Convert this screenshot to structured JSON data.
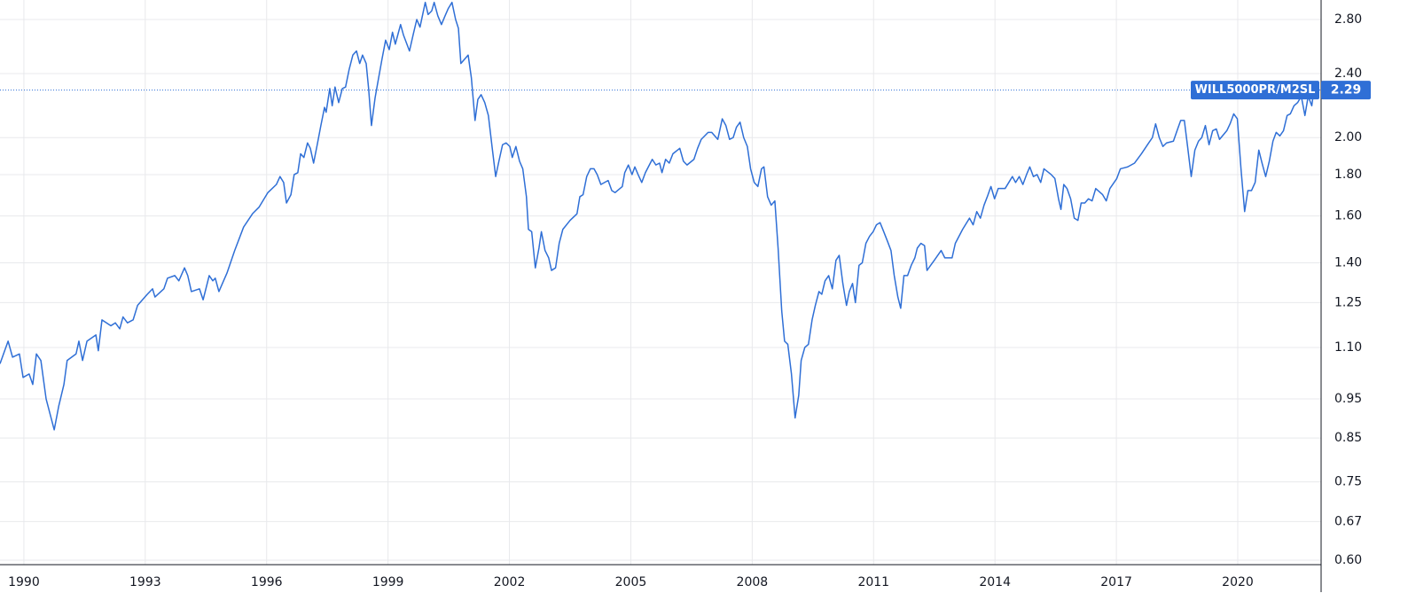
{
  "chart_data": {
    "type": "line",
    "log_scale": true,
    "grid": true,
    "x": [
      1989.41,
      1989.61,
      1989.72,
      1989.89,
      1989.98,
      1990.13,
      1990.22,
      1990.31,
      1990.42,
      1990.55,
      1990.75,
      1990.86,
      1990.99,
      1991.07,
      1991.29,
      1991.36,
      1991.45,
      1991.56,
      1991.78,
      1991.84,
      1991.93,
      1992.15,
      1992.26,
      1992.37,
      1992.45,
      1992.56,
      1992.7,
      1992.81,
      1993.05,
      1993.18,
      1993.24,
      1993.46,
      1993.55,
      1993.73,
      1993.83,
      1993.97,
      1994.05,
      1994.14,
      1994.34,
      1994.43,
      1994.58,
      1994.67,
      1994.73,
      1994.82,
      1995.02,
      1995.21,
      1995.43,
      1995.65,
      1995.81,
      1996.03,
      1996.24,
      1996.33,
      1996.42,
      1996.49,
      1996.6,
      1996.68,
      1996.77,
      1996.84,
      1996.92,
      1997.01,
      1997.08,
      1997.16,
      1997.25,
      1997.34,
      1997.43,
      1997.47,
      1997.56,
      1997.62,
      1997.69,
      1997.78,
      1997.87,
      1997.95,
      1998.04,
      1998.13,
      1998.22,
      1998.3,
      1998.37,
      1998.46,
      1998.52,
      1998.59,
      1998.68,
      1998.76,
      1998.85,
      1998.94,
      1999.03,
      1999.11,
      1999.18,
      1999.25,
      1999.31,
      1999.38,
      1999.53,
      1999.62,
      1999.71,
      1999.79,
      1999.92,
      1999.99,
      2000.08,
      2000.14,
      2000.23,
      2000.32,
      2000.41,
      2000.49,
      2000.58,
      2000.67,
      2000.74,
      2000.8,
      2000.98,
      2001.06,
      2001.15,
      2001.22,
      2001.3,
      2001.39,
      2001.48,
      2001.57,
      2001.66,
      2001.74,
      2001.83,
      2001.92,
      2002.01,
      2002.07,
      2002.16,
      2002.25,
      2002.33,
      2002.42,
      2002.47,
      2002.55,
      2002.64,
      2002.73,
      2002.79,
      2002.88,
      2002.97,
      2003.04,
      2003.14,
      2003.23,
      2003.32,
      2003.5,
      2003.67,
      2003.74,
      2003.82,
      2003.91,
      2004.0,
      2004.09,
      2004.17,
      2004.26,
      2004.35,
      2004.44,
      2004.53,
      2004.61,
      2004.79,
      2004.85,
      2004.94,
      2005.03,
      2005.1,
      2005.18,
      2005.27,
      2005.36,
      2005.53,
      2005.62,
      2005.71,
      2005.77,
      2005.86,
      2005.95,
      2006.04,
      2006.21,
      2006.3,
      2006.39,
      2006.56,
      2006.65,
      2006.74,
      2006.91,
      2007.0,
      2007.15,
      2007.26,
      2007.35,
      2007.44,
      2007.53,
      2007.61,
      2007.7,
      2007.79,
      2007.88,
      2007.96,
      2008.05,
      2008.14,
      2008.23,
      2008.29,
      2008.38,
      2008.47,
      2008.56,
      2008.64,
      2008.73,
      2008.8,
      2008.88,
      2008.97,
      2009.06,
      2009.15,
      2009.21,
      2009.3,
      2009.39,
      2009.48,
      2009.56,
      2009.65,
      2009.72,
      2009.8,
      2009.89,
      2009.98,
      2010.07,
      2010.15,
      2010.24,
      2010.33,
      2010.4,
      2010.48,
      2010.55,
      2010.64,
      2010.72,
      2010.81,
      2010.9,
      2010.99,
      2011.07,
      2011.16,
      2011.25,
      2011.34,
      2011.43,
      2011.51,
      2011.6,
      2011.67,
      2011.75,
      2011.84,
      2011.93,
      2012.02,
      2012.08,
      2012.17,
      2012.26,
      2012.32,
      2012.41,
      2012.5,
      2012.67,
      2012.76,
      2012.94,
      2013.02,
      2013.2,
      2013.37,
      2013.46,
      2013.55,
      2013.64,
      2013.73,
      2013.81,
      2013.9,
      2013.99,
      2014.08,
      2014.25,
      2014.43,
      2014.51,
      2014.6,
      2014.69,
      2014.78,
      2014.86,
      2014.95,
      2015.04,
      2015.13,
      2015.21,
      2015.39,
      2015.48,
      2015.57,
      2015.63,
      2015.7,
      2015.78,
      2015.87,
      2015.96,
      2016.05,
      2016.13,
      2016.22,
      2016.31,
      2016.4,
      2016.49,
      2016.66,
      2016.75,
      2016.84,
      2017.01,
      2017.1,
      2017.28,
      2017.45,
      2017.62,
      2017.8,
      2017.89,
      2017.97,
      2018.06,
      2018.15,
      2018.24,
      2018.41,
      2018.5,
      2018.59,
      2018.68,
      2018.76,
      2018.85,
      2018.94,
      2019.03,
      2019.11,
      2019.2,
      2019.29,
      2019.38,
      2019.47,
      2019.55,
      2019.73,
      2019.81,
      2019.9,
      2019.99,
      2020.08,
      2020.17,
      2020.25,
      2020.34,
      2020.43,
      2020.52,
      2020.6,
      2020.69,
      2020.78,
      2020.87,
      2020.95,
      2021.04,
      2021.13,
      2021.22,
      2021.3,
      2021.39,
      2021.48,
      2021.57,
      2021.66,
      2021.74,
      2021.83,
      2021.88
    ],
    "series": [
      {
        "name": "WILL5000PR/M2SL",
        "color": "#2f6fd6",
        "values": [
          1.05,
          1.12,
          1.07,
          1.08,
          1.01,
          1.02,
          0.99,
          1.08,
          1.06,
          0.95,
          0.87,
          0.93,
          0.99,
          1.06,
          1.08,
          1.12,
          1.06,
          1.12,
          1.14,
          1.09,
          1.19,
          1.17,
          1.18,
          1.16,
          1.2,
          1.18,
          1.19,
          1.24,
          1.28,
          1.3,
          1.27,
          1.3,
          1.34,
          1.35,
          1.33,
          1.38,
          1.35,
          1.29,
          1.3,
          1.26,
          1.35,
          1.33,
          1.34,
          1.29,
          1.36,
          1.45,
          1.55,
          1.61,
          1.64,
          1.71,
          1.75,
          1.79,
          1.76,
          1.66,
          1.7,
          1.8,
          1.81,
          1.91,
          1.89,
          1.97,
          1.94,
          1.86,
          1.96,
          2.07,
          2.18,
          2.15,
          2.3,
          2.19,
          2.31,
          2.21,
          2.3,
          2.31,
          2.43,
          2.53,
          2.56,
          2.47,
          2.53,
          2.47,
          2.3,
          2.07,
          2.24,
          2.36,
          2.5,
          2.64,
          2.57,
          2.7,
          2.61,
          2.69,
          2.76,
          2.68,
          2.56,
          2.68,
          2.8,
          2.74,
          2.94,
          2.84,
          2.87,
          2.94,
          2.83,
          2.76,
          2.83,
          2.89,
          2.94,
          2.8,
          2.73,
          2.47,
          2.53,
          2.37,
          2.1,
          2.23,
          2.26,
          2.21,
          2.13,
          1.95,
          1.79,
          1.87,
          1.96,
          1.97,
          1.95,
          1.89,
          1.95,
          1.87,
          1.83,
          1.69,
          1.54,
          1.53,
          1.38,
          1.46,
          1.53,
          1.45,
          1.42,
          1.37,
          1.38,
          1.48,
          1.54,
          1.58,
          1.61,
          1.69,
          1.7,
          1.79,
          1.83,
          1.83,
          1.8,
          1.75,
          1.76,
          1.77,
          1.72,
          1.71,
          1.74,
          1.81,
          1.85,
          1.8,
          1.84,
          1.8,
          1.76,
          1.81,
          1.88,
          1.85,
          1.86,
          1.81,
          1.88,
          1.86,
          1.91,
          1.94,
          1.87,
          1.85,
          1.88,
          1.94,
          1.99,
          2.03,
          2.03,
          1.99,
          2.11,
          2.07,
          1.99,
          2.0,
          2.06,
          2.09,
          2.0,
          1.95,
          1.83,
          1.76,
          1.74,
          1.83,
          1.84,
          1.69,
          1.65,
          1.67,
          1.46,
          1.22,
          1.12,
          1.11,
          1.02,
          0.9,
          0.96,
          1.06,
          1.1,
          1.11,
          1.19,
          1.24,
          1.29,
          1.28,
          1.33,
          1.35,
          1.3,
          1.41,
          1.43,
          1.32,
          1.24,
          1.29,
          1.32,
          1.25,
          1.39,
          1.4,
          1.48,
          1.51,
          1.53,
          1.56,
          1.57,
          1.53,
          1.49,
          1.45,
          1.35,
          1.27,
          1.23,
          1.35,
          1.35,
          1.39,
          1.42,
          1.46,
          1.48,
          1.47,
          1.37,
          1.39,
          1.41,
          1.45,
          1.42,
          1.42,
          1.48,
          1.54,
          1.59,
          1.56,
          1.62,
          1.59,
          1.65,
          1.69,
          1.74,
          1.68,
          1.73,
          1.73,
          1.79,
          1.76,
          1.79,
          1.75,
          1.8,
          1.84,
          1.79,
          1.8,
          1.76,
          1.83,
          1.8,
          1.78,
          1.68,
          1.63,
          1.75,
          1.73,
          1.68,
          1.59,
          1.58,
          1.66,
          1.66,
          1.68,
          1.67,
          1.73,
          1.7,
          1.67,
          1.73,
          1.78,
          1.83,
          1.84,
          1.86,
          1.91,
          1.97,
          2.0,
          2.08,
          2.0,
          1.95,
          1.97,
          1.98,
          2.04,
          2.1,
          2.1,
          1.95,
          1.79,
          1.93,
          1.98,
          2.0,
          2.07,
          1.96,
          2.04,
          2.05,
          1.99,
          2.04,
          2.08,
          2.14,
          2.11,
          1.83,
          1.62,
          1.72,
          1.72,
          1.76,
          1.93,
          1.86,
          1.79,
          1.87,
          1.98,
          2.03,
          2.01,
          2.04,
          2.13,
          2.14,
          2.19,
          2.21,
          2.25,
          2.13,
          2.25,
          2.19,
          2.29
        ]
      }
    ],
    "xlim": [
      1989.41,
      2022.06
    ],
    "xticks": [
      1990,
      1993,
      1996,
      1999,
      2002,
      2005,
      2008,
      2011,
      2014,
      2017,
      2020
    ],
    "ylim": [
      0.5925,
      2.96
    ],
    "yticks": [
      {
        "value": 2.8,
        "label": "2.80"
      },
      {
        "value": 2.4,
        "label": "2.40"
      },
      {
        "value": 2.0,
        "label": "2.00"
      },
      {
        "value": 1.8,
        "label": "1.80"
      },
      {
        "value": 1.6,
        "label": "1.60"
      },
      {
        "value": 1.4,
        "label": "1.40"
      },
      {
        "value": 1.25,
        "label": "1.25"
      },
      {
        "value": 1.1,
        "label": "1.10"
      },
      {
        "value": 0.95,
        "label": "0.95"
      },
      {
        "value": 0.85,
        "label": "0.85"
      },
      {
        "value": 0.75,
        "label": "0.75"
      },
      {
        "value": 0.67,
        "label": "0.67"
      },
      {
        "value": 0.6,
        "label": "0.60"
      }
    ]
  }
}
